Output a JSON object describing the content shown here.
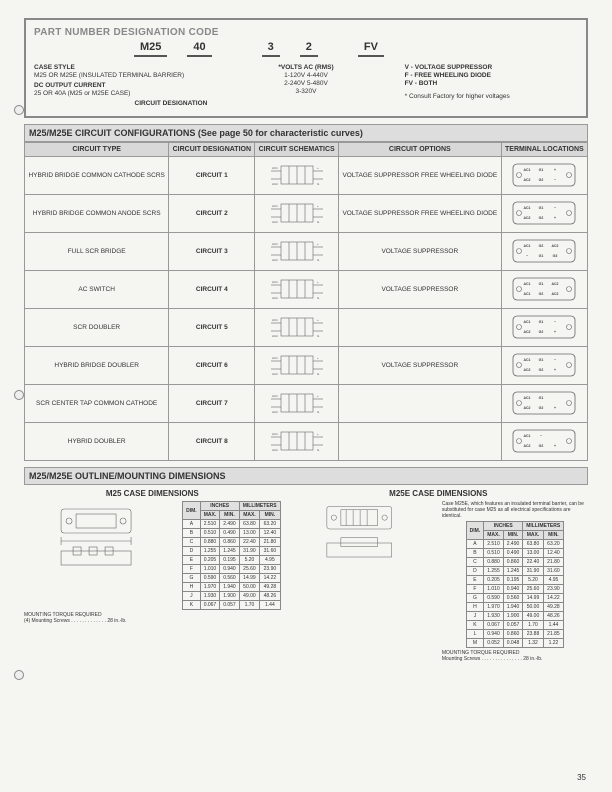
{
  "page_number": "35",
  "partcode": {
    "header": "PART NUMBER DESIGNATION CODE",
    "items": [
      "M25",
      "40",
      "3",
      "2",
      "FV"
    ],
    "case_style": {
      "label": "CASE STYLE",
      "desc": "M25 OR M25E (INSULATED TERMINAL BARRIER)"
    },
    "dc_output": {
      "label": "DC OUTPUT CURRENT",
      "desc": "25 OR 40A (M25 or M25E CASE)"
    },
    "circuit_designation": "CIRCUIT DESIGNATION",
    "volts": {
      "label": "*VOLTS AC (RMS)",
      "rows": [
        "1-120V   4-440V",
        "2-240V   5-480V",
        "3-320V"
      ]
    },
    "options": {
      "v": "V - VOLTAGE SUPPRESSOR",
      "f": "F - FREE WHEELING DIODE",
      "fv": "FV - BOTH"
    },
    "footnote": "* Consult Factory for higher voltages"
  },
  "config": {
    "header": "M25/M25E CIRCUIT CONFIGURATIONS   (See page 50 for characteristic curves)",
    "columns": [
      "CIRCUIT TYPE",
      "CIRCUIT DESIGNATION",
      "CIRCUIT SCHEMATICS",
      "CIRCUIT OPTIONS",
      "TERMINAL LOCATIONS"
    ],
    "rows": [
      {
        "type": "HYBRID BRIDGE COMMON CATHODE SCRS",
        "desig": "CIRCUIT 1",
        "options": "VOLTAGE SUPPRESSOR FREE WHEELING DIODE",
        "terms": [
          "AC1",
          "G1",
          "+",
          "AC2",
          "G2",
          "−"
        ]
      },
      {
        "type": "HYBRID BRIDGE COMMON ANODE SCRS",
        "desig": "CIRCUIT 2",
        "options": "VOLTAGE SUPPRESSOR FREE WHEELING DIODE",
        "terms": [
          "AC1",
          "G1",
          "−",
          "AC2",
          "G2",
          "+"
        ]
      },
      {
        "type": "FULL SCR BRIDGE",
        "desig": "CIRCUIT 3",
        "options": "VOLTAGE SUPPRESSOR",
        "terms": [
          "AC1",
          "G2",
          "AC2",
          "−",
          "G1",
          "G3",
          "G4",
          "+"
        ]
      },
      {
        "type": "AC SWITCH",
        "desig": "CIRCUIT 4",
        "options": "VOLTAGE SUPPRESSOR",
        "terms": [
          "AC1",
          "G1",
          "AC2",
          "AC1",
          "G2",
          "AC2"
        ]
      },
      {
        "type": "SCR DOUBLER",
        "desig": "CIRCUIT 5",
        "options": "",
        "terms": [
          "AC1",
          "G1",
          "−",
          "AC2",
          "G2",
          "+"
        ]
      },
      {
        "type": "HYBRID BRIDGE DOUBLER",
        "desig": "CIRCUIT 6",
        "options": "VOLTAGE SUPPRESSOR",
        "terms": [
          "AC1",
          "G1",
          "−",
          "AC2",
          "G2",
          "+"
        ]
      },
      {
        "type": "SCR CENTER TAP COMMON CATHODE",
        "desig": "CIRCUIT 7",
        "options": "",
        "terms": [
          "AC1",
          "G1",
          "",
          "AC2",
          "G2",
          "+"
        ]
      },
      {
        "type": "HYBRID DOUBLER",
        "desig": "CIRCUIT 8",
        "options": "",
        "terms": [
          "AC1",
          "−",
          "",
          "AC2",
          "G2",
          "+"
        ]
      }
    ]
  },
  "outline": {
    "header": "M25/M25E OUTLINE/MOUNTING DIMENSIONS",
    "m25_title": "M25 CASE DIMENSIONS",
    "m25e_title": "M25E CASE DIMENSIONS",
    "dim_headers": {
      "dim": "DIM.",
      "inches": "INCHES",
      "mm": "MILLIMETERS",
      "max": "MAX.",
      "min": "MIN."
    },
    "m25_rows": [
      [
        "A",
        "2.510",
        "2.490",
        "63.80",
        "63.20"
      ],
      [
        "B",
        "0.510",
        "0.490",
        "13.00",
        "12.40"
      ],
      [
        "C",
        "0.880",
        "0.860",
        "22.40",
        "21.80"
      ],
      [
        "D",
        "1.255",
        "1.245",
        "31.90",
        "31.60"
      ],
      [
        "E",
        "0.205",
        "0.195",
        "5.20",
        "4.95"
      ],
      [
        "F",
        "1.010",
        "0.940",
        "25.60",
        "23.90"
      ],
      [
        "G",
        "0.590",
        "0.560",
        "14.99",
        "14.22"
      ],
      [
        "H",
        "1.970",
        "1.940",
        "50.00",
        "49.28"
      ],
      [
        "J",
        "1.930",
        "1.900",
        "49.00",
        "48.26"
      ],
      [
        "K",
        "0.067",
        "0.057",
        "1.70",
        "1.44"
      ]
    ],
    "m25e_rows": [
      [
        "A",
        "2.510",
        "2.490",
        "63.80",
        "63.20"
      ],
      [
        "B",
        "0.510",
        "0.490",
        "13.00",
        "12.40"
      ],
      [
        "C",
        "0.880",
        "0.860",
        "22.40",
        "21.80"
      ],
      [
        "D",
        "1.255",
        "1.245",
        "31.90",
        "31.60"
      ],
      [
        "E",
        "0.205",
        "0.195",
        "5.20",
        "4.95"
      ],
      [
        "F",
        "1.010",
        "0.940",
        "25.60",
        "23.90"
      ],
      [
        "G",
        "0.590",
        "0.560",
        "14.99",
        "14.22"
      ],
      [
        "H",
        "1.970",
        "1.940",
        "50.00",
        "49.28"
      ],
      [
        "J",
        "1.930",
        "1.900",
        "49.00",
        "48.26"
      ],
      [
        "K",
        "0.067",
        "0.057",
        "1.70",
        "1.44"
      ],
      [
        "L",
        "0.940",
        "0.860",
        "23.88",
        "21.85"
      ],
      [
        "M",
        "0.052",
        "0.048",
        "1.32",
        "1.22"
      ]
    ],
    "torque": "MOUNTING TORQUE REQUIRED\nMounting Screws . . . . . . . . . . . . . . . 28 in.-lb.",
    "torque_m25": "MOUNTING TORQUE REQUIRED\n(4) Mounting Screws . . . . . . . . . . . . . 28 in.-lb.",
    "m25e_note": "Case M25E, which features an insulated terminal barrier, can be substituted for case M25 as all electrical specifications are identical."
  },
  "style": {
    "header_bg": "#d8d8d8",
    "border": "#999",
    "text": "#333"
  }
}
